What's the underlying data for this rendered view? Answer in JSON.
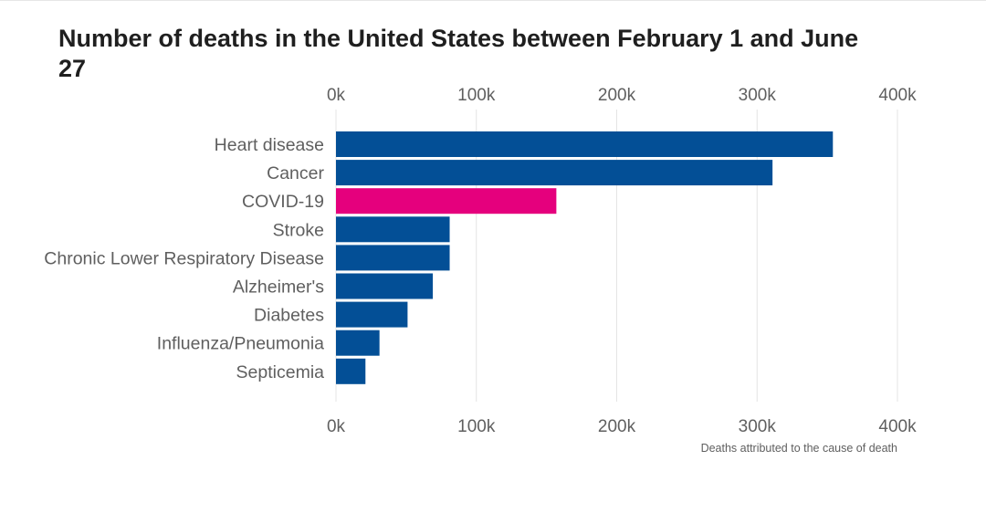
{
  "title": "Number of deaths in the United States between February 1 and June 27",
  "chart_data": {
    "type": "bar",
    "orientation": "horizontal",
    "title": "Number of deaths in the United States between February 1 and June 27",
    "xlabel": "Deaths attributed to the cause of death",
    "ylabel": "",
    "xlim": [
      0,
      400000
    ],
    "ticks": [
      0,
      100000,
      200000,
      300000,
      400000
    ],
    "tick_labels": [
      "0k",
      "100k",
      "200k",
      "300k",
      "400k"
    ],
    "grid": true,
    "categories": [
      "Heart disease",
      "Cancer",
      "COVID-19",
      "Stroke",
      "Chronic Lower Respiratory Disease",
      "Alzheimer's",
      "Diabetes",
      "Influenza/Pneumonia",
      "Septicemia"
    ],
    "values": [
      354000,
      311000,
      157000,
      81000,
      81000,
      69000,
      51000,
      31000,
      21000
    ],
    "highlight": "COVID-19",
    "colors": {
      "default": "#034f96",
      "highlight": "#e5007d",
      "grid": "#e4e4e4"
    }
  }
}
